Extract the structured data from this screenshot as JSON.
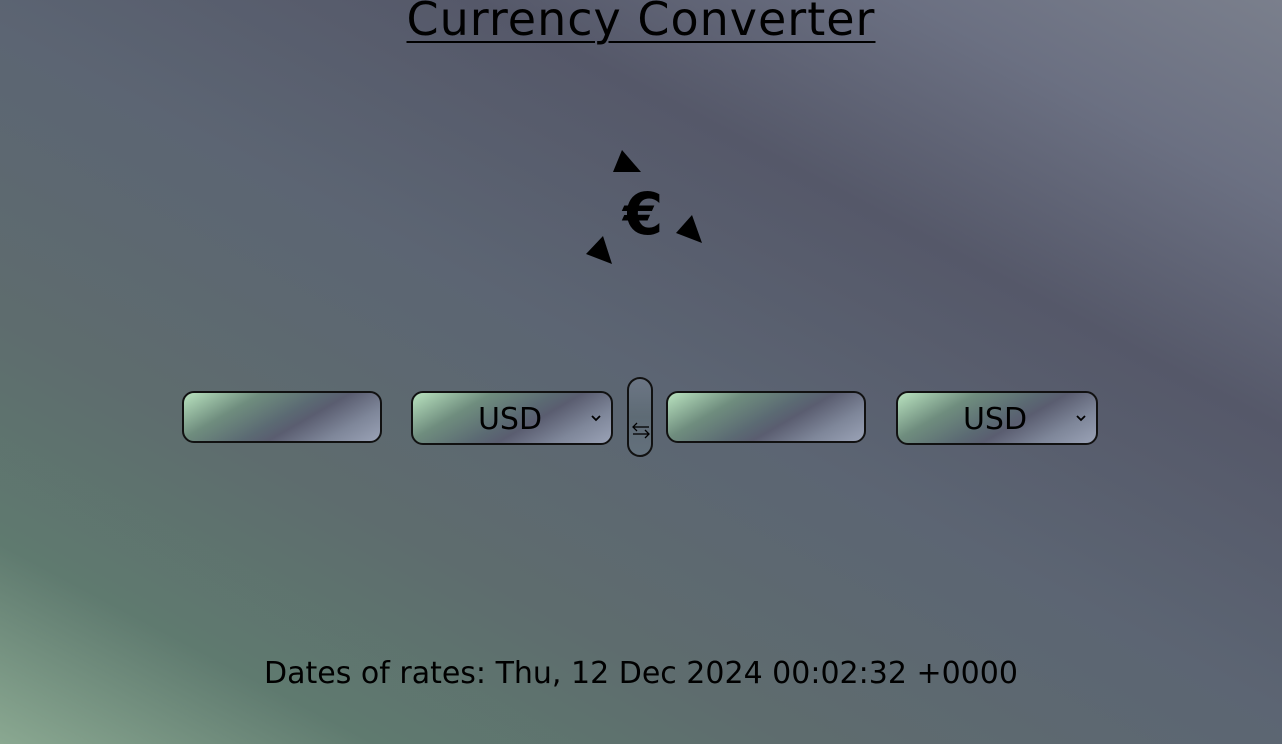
{
  "header": {
    "title": "Currency Converter"
  },
  "logo": {
    "symbol": "€",
    "icon": "euro-icon"
  },
  "converter": {
    "from": {
      "amount": "",
      "currency": "USD"
    },
    "to": {
      "amount": "",
      "currency": "USD"
    },
    "swap_icon": "swap-arrows-icon"
  },
  "footer": {
    "rates_text": "Dates of rates: Thu, 12 Dec 2024 00:02:32 +0000"
  }
}
